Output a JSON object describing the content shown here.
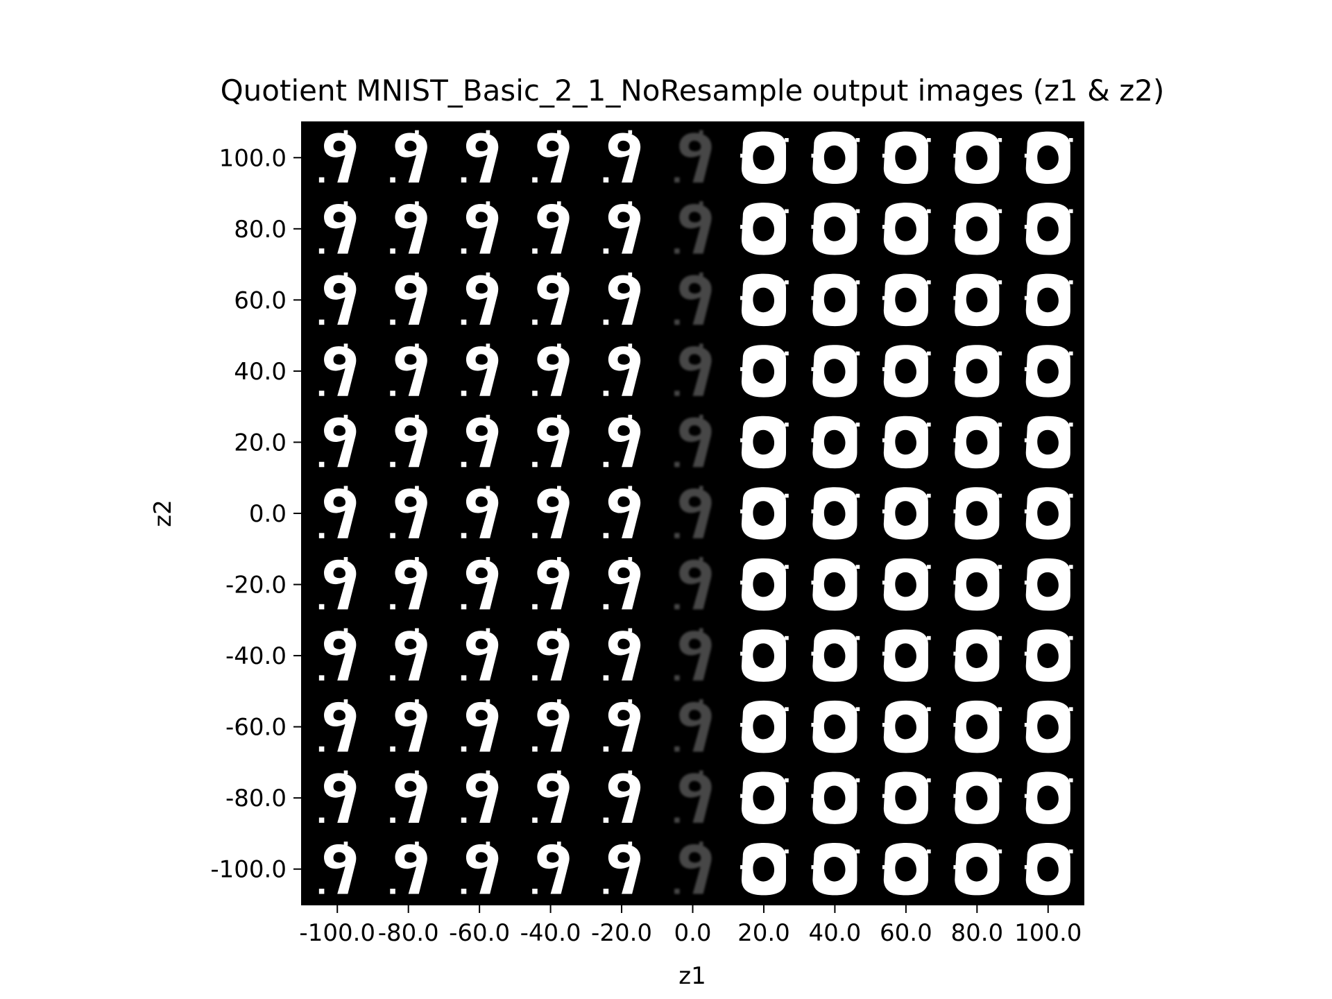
{
  "chart_data": {
    "type": "heatmap",
    "title": "Quotient MNIST_Basic_2_1_NoResample output images (z1 & z2)",
    "xlabel": "z1",
    "ylabel": "z2",
    "x_ticks": [
      "-100.0",
      "-80.0",
      "-60.0",
      "-40.0",
      "-20.0",
      "0.0",
      "20.0",
      "40.0",
      "60.0",
      "80.0",
      "100.0"
    ],
    "y_ticks": [
      "100.0",
      "80.0",
      "60.0",
      "40.0",
      "20.0",
      "0.0",
      "-20.0",
      "-40.0",
      "-60.0",
      "-80.0",
      "-100.0"
    ],
    "z1_values": [
      -100,
      -80,
      -60,
      -40,
      -20,
      0,
      20,
      40,
      60,
      80,
      100
    ],
    "z2_values": [
      100,
      80,
      60,
      40,
      20,
      0,
      -20,
      -40,
      -60,
      -80,
      -100
    ],
    "column_digits": [
      "9",
      "9",
      "9",
      "9",
      "9",
      "faint",
      "0",
      "0",
      "0",
      "0",
      "0"
    ],
    "background": "#000000",
    "foreground": "#ffffff"
  }
}
